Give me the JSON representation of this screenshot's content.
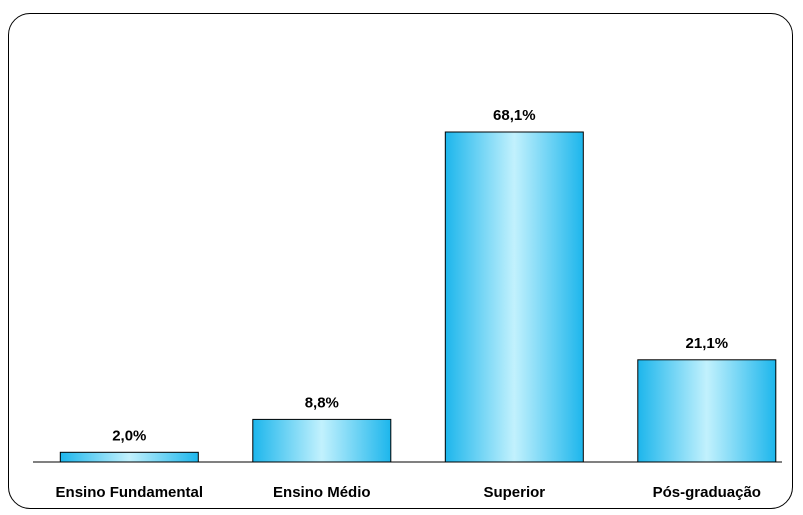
{
  "chart_data": {
    "type": "bar",
    "categories": [
      "Ensino Fundamental",
      "Ensino Médio",
      "Superior",
      "Pós-graduação"
    ],
    "values": [
      2.0,
      8.8,
      68.1,
      21.1
    ],
    "value_labels": [
      "2,0%",
      "8,8%",
      "68,1%",
      "21,1%"
    ],
    "ylim": [
      0,
      75
    ],
    "grid": false,
    "legend": "none",
    "colors": {
      "bar_center": "#c2f1fd",
      "bar_edge": "#1db6ec",
      "bar_outline": "#000000",
      "axis": "#000000"
    }
  }
}
